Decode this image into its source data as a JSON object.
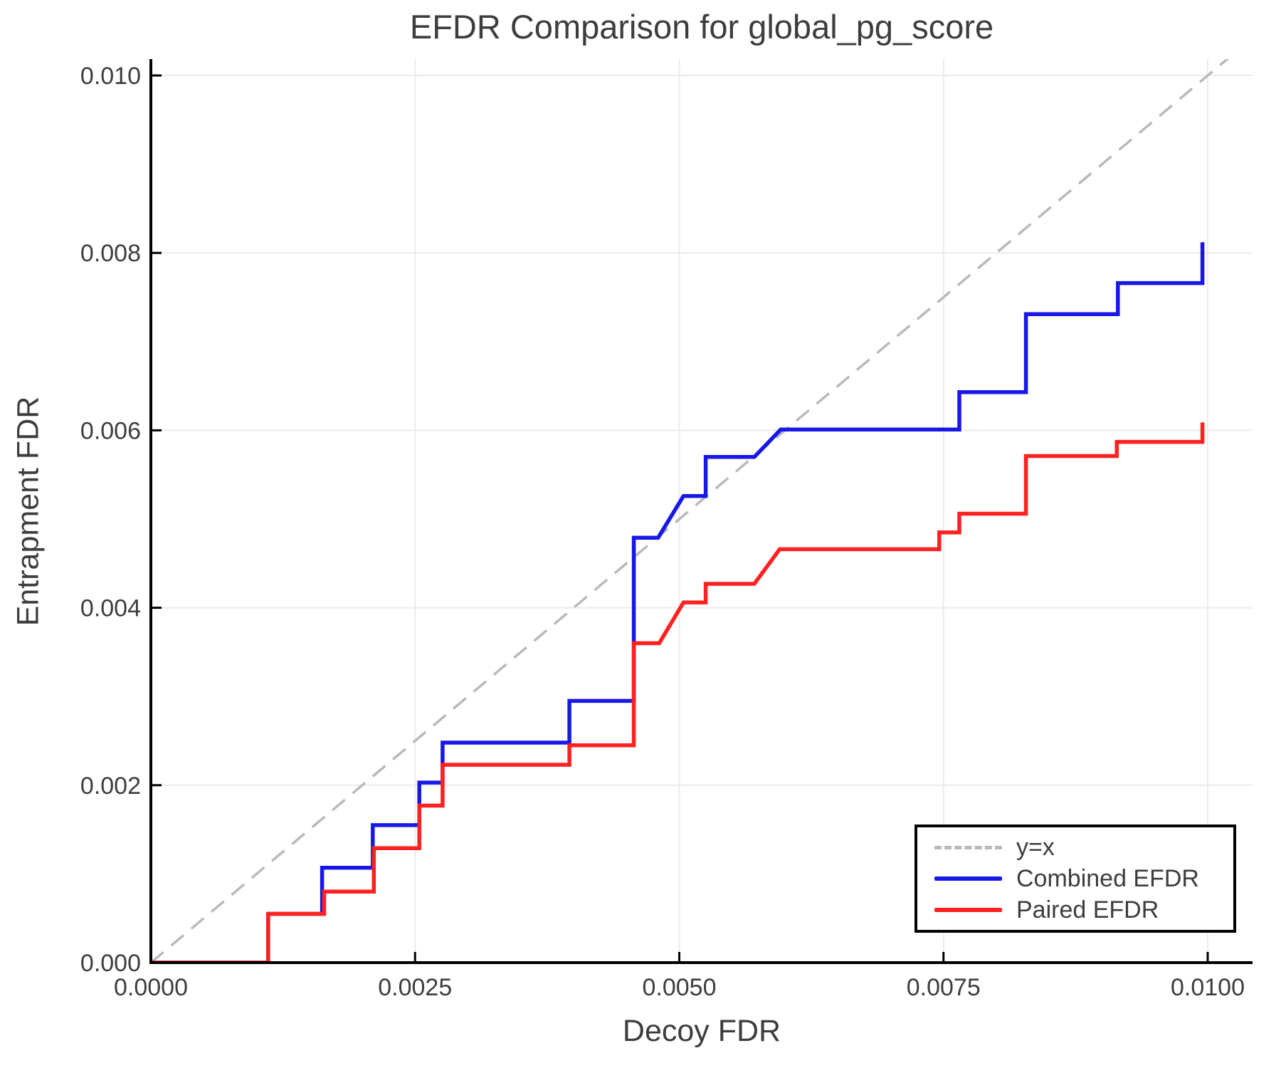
{
  "chart_data": {
    "type": "line",
    "title": "EFDR Comparison for global_pg_score",
    "xlabel": "Decoy FDR",
    "ylabel": "Entrapment FDR",
    "xlim": [
      0.0,
      0.01042
    ],
    "ylim": [
      0.0,
      0.01018
    ],
    "grid": true,
    "legend_position": "lower right",
    "x_ticks": [
      {
        "value": 0.0,
        "label": "0.0000"
      },
      {
        "value": 0.0025,
        "label": "0.0025"
      },
      {
        "value": 0.005,
        "label": "0.0050"
      },
      {
        "value": 0.0075,
        "label": "0.0075"
      },
      {
        "value": 0.01,
        "label": "0.0100"
      }
    ],
    "y_ticks": [
      {
        "value": 0.0,
        "label": "0.000"
      },
      {
        "value": 0.002,
        "label": "0.002"
      },
      {
        "value": 0.004,
        "label": "0.004"
      },
      {
        "value": 0.006,
        "label": "0.006"
      },
      {
        "value": 0.008,
        "label": "0.008"
      },
      {
        "value": 0.01,
        "label": "0.010"
      }
    ],
    "series": [
      {
        "name": "y=x",
        "color": "#b9b9b9",
        "style": "dashed",
        "points": [
          [
            0.0,
            0.0
          ],
          [
            0.0102,
            0.0102
          ]
        ]
      },
      {
        "name": "Combined EFDR",
        "color": "#1717e8",
        "style": "solid",
        "points": [
          [
            0.0,
            0.0
          ],
          [
            0.00111,
            0.0
          ],
          [
            0.00111,
            0.00055
          ],
          [
            0.00162,
            0.00055
          ],
          [
            0.00162,
            0.00107
          ],
          [
            0.0021,
            0.00107
          ],
          [
            0.0021,
            0.00155
          ],
          [
            0.00254,
            0.00155
          ],
          [
            0.00254,
            0.00203
          ],
          [
            0.00276,
            0.00203
          ],
          [
            0.00276,
            0.00248
          ],
          [
            0.00396,
            0.00248
          ],
          [
            0.00396,
            0.00295
          ],
          [
            0.00457,
            0.00295
          ],
          [
            0.00457,
            0.00479
          ],
          [
            0.0048,
            0.00479
          ],
          [
            0.00504,
            0.00526
          ],
          [
            0.00525,
            0.00526
          ],
          [
            0.00525,
            0.0057
          ],
          [
            0.00571,
            0.0057
          ],
          [
            0.00596,
            0.00601
          ],
          [
            0.00765,
            0.00601
          ],
          [
            0.00765,
            0.00643
          ],
          [
            0.00828,
            0.00643
          ],
          [
            0.00828,
            0.00731
          ],
          [
            0.00915,
            0.00731
          ],
          [
            0.00915,
            0.00766
          ],
          [
            0.00995,
            0.00766
          ],
          [
            0.00995,
            0.00812
          ]
        ]
      },
      {
        "name": "Paired EFDR",
        "color": "#ff2020",
        "style": "solid",
        "points": [
          [
            0.0,
            0.0
          ],
          [
            0.00111,
            0.0
          ],
          [
            0.00111,
            0.00055
          ],
          [
            0.00164,
            0.00055
          ],
          [
            0.00164,
            0.0008
          ],
          [
            0.00211,
            0.0008
          ],
          [
            0.00211,
            0.00129
          ],
          [
            0.00254,
            0.00129
          ],
          [
            0.00254,
            0.00177
          ],
          [
            0.00276,
            0.00177
          ],
          [
            0.00276,
            0.00223
          ],
          [
            0.00396,
            0.00223
          ],
          [
            0.00396,
            0.00245
          ],
          [
            0.00457,
            0.00245
          ],
          [
            0.00457,
            0.0036
          ],
          [
            0.00481,
            0.0036
          ],
          [
            0.00504,
            0.00406
          ],
          [
            0.00525,
            0.00406
          ],
          [
            0.00525,
            0.00427
          ],
          [
            0.00571,
            0.00427
          ],
          [
            0.00595,
            0.00466
          ],
          [
            0.00746,
            0.00466
          ],
          [
            0.00746,
            0.00485
          ],
          [
            0.00765,
            0.00485
          ],
          [
            0.00765,
            0.00506
          ],
          [
            0.00828,
            0.00506
          ],
          [
            0.00828,
            0.00571
          ],
          [
            0.00914,
            0.00571
          ],
          [
            0.00914,
            0.00587
          ],
          [
            0.00995,
            0.00587
          ],
          [
            0.00995,
            0.00609
          ]
        ]
      }
    ],
    "colors": {
      "grid": "#ebebeb",
      "spine": "#000000",
      "text": "#3d3d3d",
      "background": "#ffffff"
    }
  }
}
